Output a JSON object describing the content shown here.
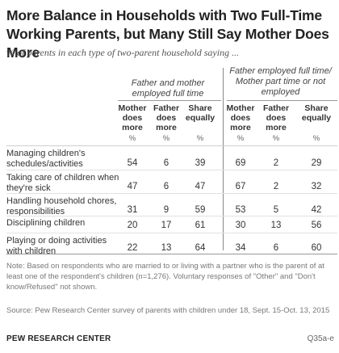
{
  "title": "More Balance in Households with Two Full-Time Working Parents, but Many Still Say Mother Does More",
  "subtitle": "% of parents in each type of two-parent household saying ...",
  "chart_data": {
    "type": "table",
    "groups": [
      {
        "label": "Father and mother employed full time",
        "columns": [
          "Mother does more",
          "Father does more",
          "Share equally"
        ]
      },
      {
        "label": "Father employed full time/ Mother part time or not employed",
        "columns": [
          "Mother does more",
          "Father does more",
          "Share equally"
        ]
      }
    ],
    "unit_row": [
      "%",
      "%",
      "%",
      "%",
      "%",
      "%"
    ],
    "rows": [
      {
        "label": "Managing children's schedules/activities",
        "values": [
          54,
          6,
          39,
          69,
          2,
          29
        ]
      },
      {
        "label": "Taking care of children when they're sick",
        "values": [
          47,
          6,
          47,
          67,
          2,
          32
        ]
      },
      {
        "label": "Handling household chores, responsibilities",
        "values": [
          31,
          9,
          59,
          53,
          5,
          42
        ]
      },
      {
        "label": "Disciplining children",
        "values": [
          20,
          17,
          61,
          30,
          13,
          56
        ]
      },
      {
        "label": "Playing or doing activities with children",
        "values": [
          22,
          13,
          64,
          34,
          6,
          60
        ]
      }
    ]
  },
  "note": "Note: Based on respondents who are married to or living with a partner who is the parent of at least one of the respondent's children (n=1,276). Voluntary responses of \"Other\" and \"Don't know/Refused\" not shown.",
  "source": "Source: Pew Research Center survey of parents with children under 18, Sept. 15-Oct. 13, 2015",
  "brand": "PEW RESEARCH CENTER",
  "code": "Q35a-e"
}
